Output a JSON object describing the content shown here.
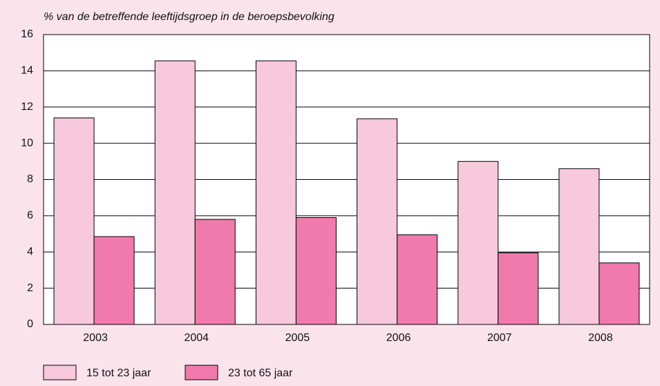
{
  "chart_data": {
    "type": "bar",
    "y_label": "% van de betreffende leeftijdsgroep in de beroepsbevolking",
    "categories": [
      "2003",
      "2004",
      "2005",
      "2006",
      "2007",
      "2008"
    ],
    "series": [
      {
        "name": "15 tot 23 jaar",
        "color": "#f8c8dc",
        "values": [
          11.4,
          14.55,
          14.55,
          11.35,
          9.0,
          8.6
        ]
      },
      {
        "name": "23 tot 65 jaar",
        "color": "#f07aab",
        "values": [
          4.85,
          5.8,
          5.9,
          4.95,
          3.95,
          3.4
        ]
      }
    ],
    "ylim": [
      0,
      16
    ],
    "yticks": [
      0,
      2,
      4,
      6,
      8,
      10,
      12,
      14,
      16
    ],
    "grid": true,
    "legend": "bottom"
  }
}
